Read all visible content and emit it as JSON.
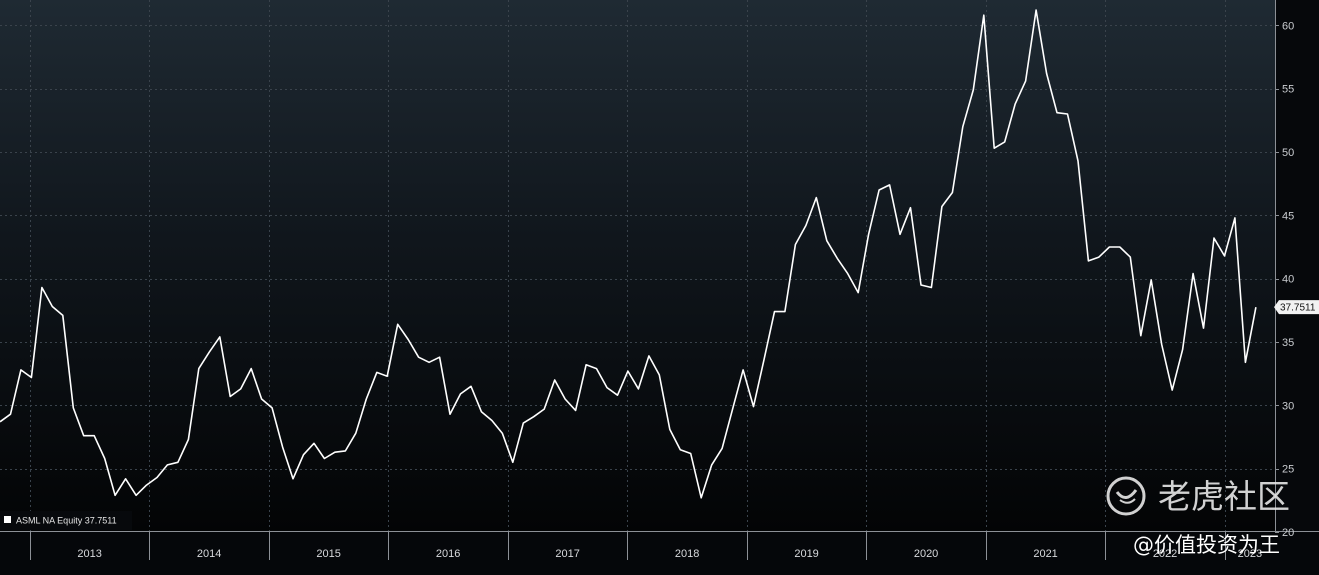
{
  "chart_data": {
    "type": "line",
    "legend": {
      "label": "ASML NA Equity",
      "value": "37.7511",
      "position": "bottom-left"
    },
    "last_value_label": "37.7511",
    "ylim": [
      20,
      62
    ],
    "yticks": [
      20,
      25,
      30,
      35,
      40,
      45,
      50,
      55,
      60
    ],
    "x_start": 2012.75,
    "x_end": 2023.42,
    "year_labels": [
      "2013",
      "2014",
      "2015",
      "2016",
      "2017",
      "2018",
      "2019",
      "2020",
      "2021",
      "2022",
      "2023"
    ],
    "grid": true,
    "line_color": "#ffffff",
    "series": [
      {
        "values": [
          28.7,
          29.3,
          32.8,
          32.2,
          39.3,
          37.8,
          37.1,
          29.8,
          27.6,
          27.6,
          25.8,
          22.9,
          24.2,
          22.9,
          23.7,
          24.3,
          25.3,
          25.5,
          27.3,
          32.9,
          34.2,
          35.4,
          30.7,
          31.3,
          32.9,
          30.5,
          29.8,
          26.7,
          24.2,
          26.1,
          27.0,
          25.8,
          26.3,
          26.4,
          27.8,
          30.5,
          32.6,
          32.3,
          36.4,
          35.2,
          33.8,
          33.4,
          33.8,
          29.3,
          30.9,
          31.5,
          29.5,
          28.8,
          27.8,
          25.5,
          28.6,
          29.1,
          29.7,
          32.0,
          30.5,
          29.6,
          33.2,
          32.9,
          31.4,
          30.8,
          32.7,
          31.3,
          33.9,
          32.4,
          28.1,
          26.5,
          26.2,
          22.7,
          25.3,
          26.6,
          29.7,
          32.8,
          29.9,
          33.6,
          37.4,
          37.4,
          42.7,
          44.2,
          46.4,
          43.0,
          41.6,
          40.4,
          38.9,
          43.5,
          47.0,
          47.4,
          43.5,
          45.6,
          39.5,
          39.3,
          45.7,
          46.8,
          52.0,
          54.9,
          60.8,
          50.3,
          50.8,
          53.8,
          55.6,
          61.2,
          56.2,
          53.1,
          53.0,
          49.3,
          41.4,
          41.7,
          42.5,
          42.5,
          41.7,
          35.5,
          39.9,
          34.8,
          31.2,
          34.4,
          40.4,
          36.1,
          43.2,
          41.8,
          44.8,
          33.4,
          37.75
        ]
      }
    ]
  },
  "watermark": {
    "brand": "老虎社区",
    "handle": "@价值投资为王"
  }
}
